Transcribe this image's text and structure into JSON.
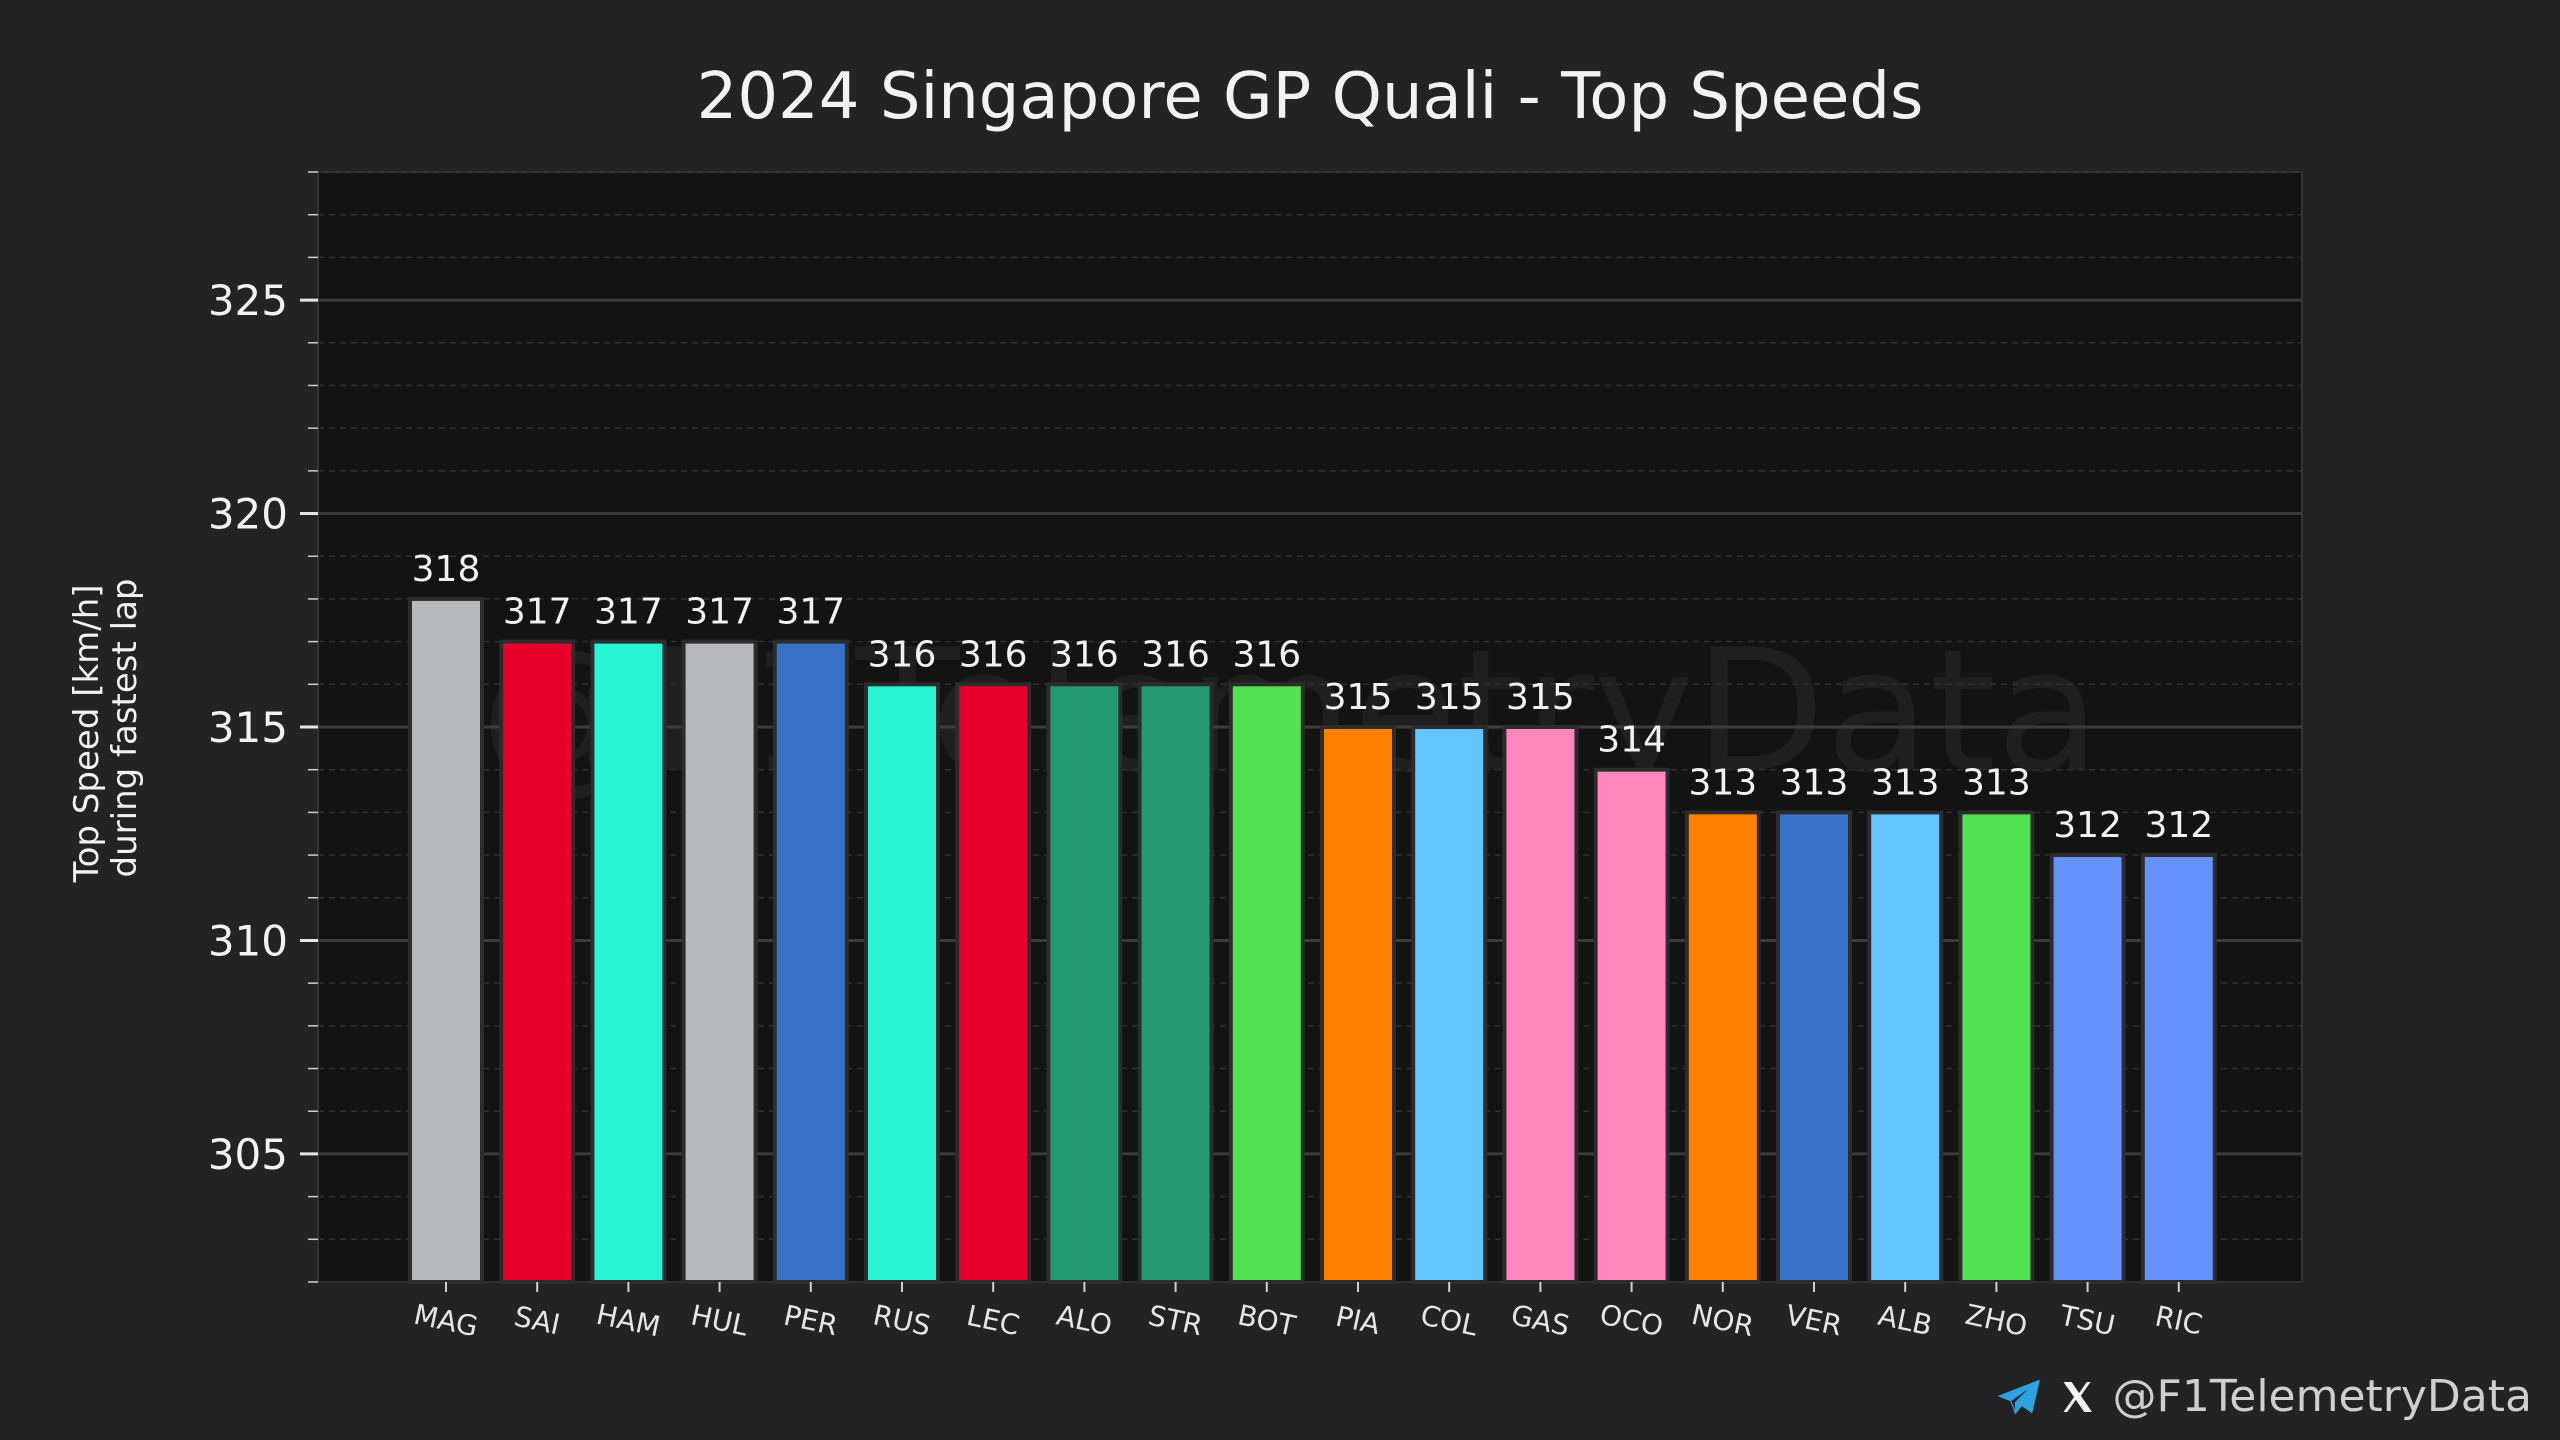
{
  "chart_data": {
    "type": "bar",
    "title": "2024 Singapore GP Quali - Top Speeds",
    "ylabel_lines": [
      "Top Speed [km/h]",
      "during fastest lap"
    ],
    "xlabel": "",
    "ylim": [
      302,
      328
    ],
    "yticks": [
      305,
      310,
      315,
      320,
      325
    ],
    "ytick_labels": [
      "305",
      "310",
      "315",
      "320",
      "325"
    ],
    "minor_tick_step": 1,
    "grid": true,
    "categories": [
      "MAG",
      "SAI",
      "HAM",
      "HUL",
      "PER",
      "RUS",
      "LEC",
      "ALO",
      "STR",
      "BOT",
      "PIA",
      "COL",
      "GAS",
      "OCO",
      "NOR",
      "VER",
      "ALB",
      "ZHO",
      "TSU",
      "RIC"
    ],
    "values": [
      318,
      317,
      317,
      317,
      317,
      316,
      316,
      316,
      316,
      316,
      315,
      315,
      315,
      314,
      313,
      313,
      313,
      313,
      312,
      312
    ],
    "value_labels": [
      "318",
      "317",
      "317",
      "317",
      "317",
      "316",
      "316",
      "316",
      "316",
      "316",
      "315",
      "315",
      "315",
      "314",
      "313",
      "313",
      "313",
      "313",
      "312",
      "312"
    ],
    "bar_colors": [
      "#b6babd",
      "#e8002d",
      "#27f4d2",
      "#b6babd",
      "#3671c6",
      "#27f4d2",
      "#e8002d",
      "#229971",
      "#229971",
      "#52e252",
      "#ff8000",
      "#64c4ff",
      "#ff87bc",
      "#ff87bc",
      "#ff8000",
      "#3671c6",
      "#64c4ff",
      "#52e252",
      "#6692ff",
      "#6692ff"
    ],
    "watermark": "@F1TelemetryData"
  },
  "footer": {
    "handle": "@F1TelemetryData",
    "icons": [
      "telegram-icon",
      "x-icon"
    ]
  },
  "colors": {
    "background": "#232323",
    "plot_background": "#131313",
    "major_grid": "#3c3c3c",
    "minor_grid": "#2e2e2e",
    "text": "#f2f2f2",
    "telegram": "#2aa3e0"
  }
}
